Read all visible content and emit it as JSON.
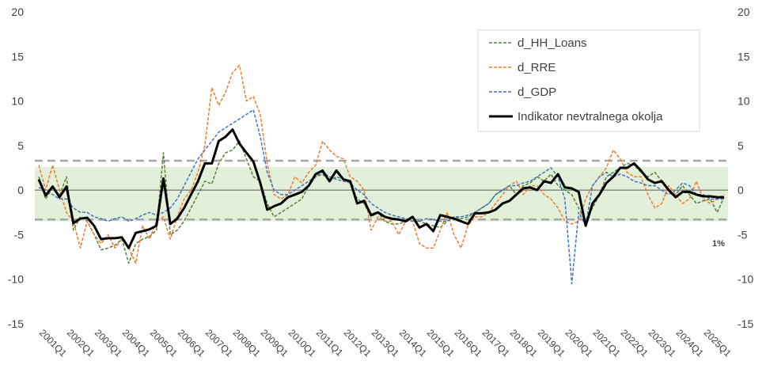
{
  "chart_data": {
    "type": "line",
    "ylim": [
      -15,
      20
    ],
    "yticks": [
      -15,
      -10,
      -5,
      0,
      5,
      10,
      15,
      20
    ],
    "y_axis_both_sides": true,
    "grid": false,
    "legend_position": "top-right",
    "x_labels": [
      "2001Q1",
      "2002Q1",
      "2003Q1",
      "2004Q1",
      "2005Q1",
      "2006Q1",
      "2007Q1",
      "2008Q1",
      "2009Q1",
      "2010Q1",
      "2011Q1",
      "2012Q1",
      "2013Q1",
      "2014Q1",
      "2015Q1",
      "2016Q1",
      "2017Q1",
      "2018Q1",
      "2019Q1",
      "2020Q1",
      "2021Q1",
      "2022Q1",
      "2023Q1",
      "2024Q1",
      "2025Q1"
    ],
    "band": {
      "lower": -3.5,
      "upper": 2.6,
      "color": "#e2efd9"
    },
    "threshold_lines": [
      3.3,
      -3.3
    ],
    "annotation": "1%",
    "series": [
      {
        "name": "d_HH_Loans",
        "color": "#548235",
        "dash": "dashed",
        "values": [
          1.5,
          -1.0,
          0.3,
          -0.6,
          1.5,
          -4.5,
          -3.0,
          -3.5,
          -5.0,
          -6.7,
          -6.5,
          -6.2,
          -5.5,
          -8.2,
          -6.0,
          -5.5,
          -5.2,
          -4.5,
          4.2,
          -5.0,
          -4.5,
          -3.5,
          -2.0,
          -0.5,
          1.0,
          0.7,
          3.0,
          4.2,
          4.5,
          5.5,
          3.5,
          1.5,
          1.0,
          -1.5,
          -3.0,
          -2.5,
          -2.0,
          -1.5,
          -1.0,
          0.5,
          1.5,
          1.8,
          1.0,
          1.5,
          1.2,
          0.8,
          -1.0,
          -1.5,
          -3.0,
          -2.5,
          -3.5,
          -3.8,
          -3.8,
          -3.5,
          -3.2,
          -3.5,
          -3.8,
          -4.0,
          -4.2,
          -3.5,
          -3.0,
          -3.2,
          -3.0,
          -2.5,
          -2.0,
          -1.5,
          -0.5,
          0.0,
          0.5,
          -0.5,
          0.5,
          0.8,
          1.5,
          1.0,
          1.8,
          0.5,
          0.0,
          -0.5,
          -2.0,
          -3.5,
          -2.0,
          -0.5,
          1.5,
          2.0,
          2.5,
          3.0,
          2.8,
          2.0,
          1.5,
          2.0,
          1.0,
          0.0,
          -0.5,
          0.5,
          -0.5,
          -1.5,
          -1.2,
          -1.0,
          -2.5,
          -0.8
        ]
      },
      {
        "name": "d_RRE",
        "color": "#ed7d31",
        "dash": "dashed",
        "values": [
          2.8,
          0.0,
          2.8,
          0.0,
          -2.5,
          -3.5,
          -6.5,
          -3.5,
          -5.0,
          -6.0,
          -5.0,
          -6.5,
          -5.5,
          -6.5,
          -8.2,
          -4.0,
          -5.5,
          -3.5,
          -3.0,
          -5.5,
          -3.0,
          -1.0,
          0.0,
          2.0,
          5.0,
          11.5,
          9.5,
          11.0,
          13.2,
          14.0,
          10.0,
          10.5,
          8.5,
          3.0,
          -0.5,
          -1.0,
          -0.5,
          1.5,
          0.8,
          2.0,
          2.8,
          5.5,
          4.5,
          3.8,
          3.5,
          1.5,
          1.0,
          0.0,
          -4.5,
          -3.0,
          -3.5,
          -3.5,
          -5.0,
          -3.5,
          -3.5,
          -6.0,
          -6.5,
          -6.5,
          -4.5,
          -2.5,
          -5.0,
          -6.5,
          -4.0,
          -3.0,
          -3.0,
          -2.5,
          -1.5,
          -0.5,
          0.5,
          1.0,
          -0.5,
          0.5,
          0.5,
          -0.5,
          -1.0,
          -2.0,
          -3.5,
          -3.8,
          -3.5,
          -1.0,
          0.5,
          1.5,
          2.5,
          4.5,
          3.5,
          2.0,
          1.5,
          1.5,
          -0.5,
          -2.0,
          -1.5,
          0.5,
          -0.5,
          -1.5,
          -1.0,
          1.0,
          -1.0,
          -1.5,
          -1.0,
          -0.5
        ]
      },
      {
        "name": "d_GDP",
        "color": "#4472c4",
        "dash": "dashed",
        "values": [
          0.3,
          0.0,
          -0.5,
          -1.0,
          -1.0,
          -2.0,
          -2.5,
          -2.5,
          -3.0,
          -3.2,
          -3.5,
          -3.2,
          -3.0,
          -3.5,
          -3.2,
          -2.8,
          -2.5,
          -2.8,
          -2.5,
          -2.0,
          -1.0,
          0.5,
          2.0,
          3.5,
          4.5,
          5.5,
          6.5,
          7.0,
          7.5,
          8.0,
          8.5,
          9.0,
          6.0,
          2.0,
          0.0,
          -0.5,
          -0.5,
          0.0,
          0.5,
          1.0,
          1.5,
          2.0,
          1.5,
          1.2,
          1.0,
          0.8,
          0.0,
          -0.5,
          -1.5,
          -2.0,
          -2.5,
          -2.8,
          -3.0,
          -3.2,
          -3.5,
          -3.5,
          -3.2,
          -3.3,
          -3.5,
          -3.5,
          -3.0,
          -3.0,
          -2.8,
          -2.5,
          -2.0,
          -1.5,
          -0.5,
          0.0,
          0.5,
          0.5,
          0.8,
          1.0,
          1.5,
          2.0,
          2.5,
          1.5,
          -1.0,
          -10.5,
          -2.5,
          -4.0,
          0.5,
          1.5,
          2.0,
          1.5,
          1.8,
          1.5,
          1.0,
          0.8,
          0.5,
          0.5,
          0.0,
          -0.5,
          0.0,
          0.8,
          0.5,
          -0.5,
          -0.5,
          -1.0,
          -1.0,
          -1.0
        ]
      },
      {
        "name": "Indikator nevtralnega okolja",
        "color": "#000000",
        "dash": "solid",
        "values": [
          1.2,
          -0.6,
          0.4,
          -0.8,
          0.4,
          -3.7,
          -3.2,
          -3.1,
          -4.0,
          -5.5,
          -5.4,
          -5.4,
          -5.3,
          -6.5,
          -4.8,
          -4.6,
          -4.4,
          -4.0,
          1.3,
          -3.8,
          -3.2,
          -2.0,
          -0.5,
          1.0,
          3.0,
          3.0,
          5.5,
          6.0,
          6.8,
          5.2,
          4.2,
          3.2,
          0.8,
          -2.2,
          -1.8,
          -1.5,
          -0.8,
          -0.5,
          -0.2,
          0.5,
          1.8,
          2.2,
          1.0,
          2.2,
          1.2,
          1.0,
          -1.5,
          -1.2,
          -2.8,
          -2.5,
          -3.0,
          -3.2,
          -3.3,
          -3.5,
          -3.0,
          -4.2,
          -3.8,
          -4.6,
          -2.8,
          -3.0,
          -3.2,
          -3.5,
          -3.8,
          -2.6,
          -2.6,
          -2.5,
          -2.2,
          -1.5,
          -1.2,
          -0.5,
          0.2,
          0.3,
          0.0,
          1.0,
          0.8,
          1.8,
          0.3,
          0.2,
          -0.2,
          -4.0,
          -1.5,
          -0.5,
          0.8,
          1.5,
          2.5,
          2.5,
          3.0,
          2.2,
          1.2,
          0.8,
          1.0,
          0.0,
          -0.8,
          -0.2,
          -0.2,
          -0.5,
          -0.7,
          -0.7,
          -0.8,
          -0.8
        ]
      }
    ]
  }
}
